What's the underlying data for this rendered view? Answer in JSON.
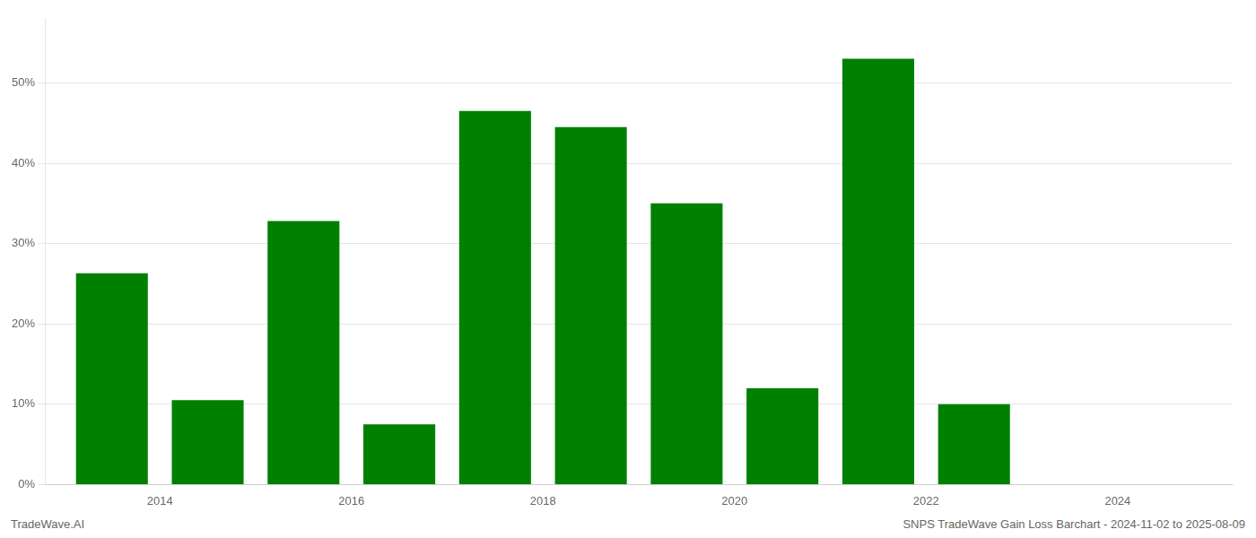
{
  "chart_data": {
    "type": "bar",
    "x": [
      2013.5,
      2014.5,
      2015.5,
      2016.5,
      2017.5,
      2018.5,
      2019.5,
      2020.5,
      2021.5,
      2022.5,
      2023.5
    ],
    "values": [
      26.3,
      10.5,
      32.8,
      7.5,
      46.5,
      44.5,
      35.0,
      12.0,
      53.0,
      10.0,
      0.0
    ],
    "color": "#008000",
    "xlim": [
      2012.8,
      2025.2
    ],
    "xticks": [
      2014,
      2016,
      2018,
      2020,
      2022,
      2024
    ],
    "ylim": [
      0,
      58
    ],
    "yticks": [
      {
        "value": 0,
        "label": "0%"
      },
      {
        "value": 10,
        "label": "10%"
      },
      {
        "value": 20,
        "label": "20%"
      },
      {
        "value": 30,
        "label": "30%"
      },
      {
        "value": 40,
        "label": "40%"
      },
      {
        "value": 50,
        "label": "50%"
      }
    ],
    "grid": true,
    "annotations": [
      "TradeWave.AI",
      "SNPS TradeWave Gain Loss Barchart - 2024-11-02 to 2025-08-09"
    ]
  }
}
